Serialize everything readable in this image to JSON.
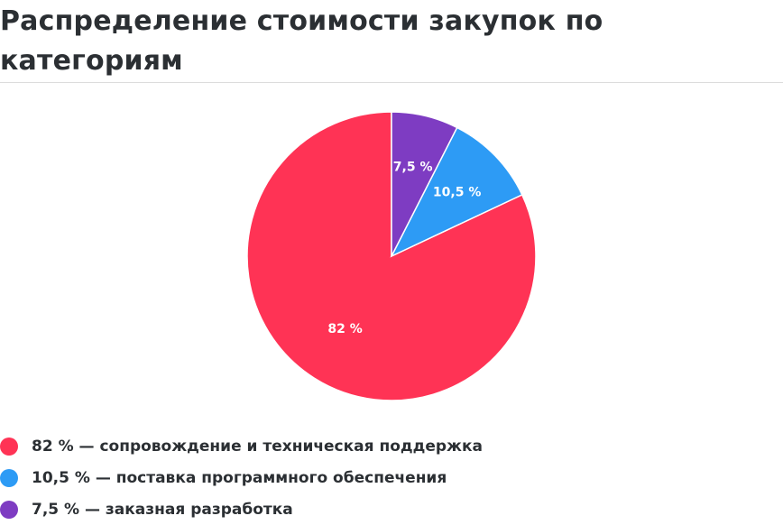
{
  "chart_data": {
    "type": "pie",
    "title": "Распределение стоимости закупок по категориям",
    "legend": "bottom-left",
    "slices": [
      {
        "label": "82 % — сопровождение и техническая поддержка",
        "value": 82,
        "value_label": "82 %",
        "color": "#ff3355"
      },
      {
        "label": "10,5 % — поставка программного обеспечения",
        "value": 10.5,
        "value_label": "10,5 %",
        "color": "#2d9bf5"
      },
      {
        "label": "7,5 % — заказная разработка",
        "value": 7.5,
        "value_label": "7,5 %",
        "color": "#7e3cc2"
      }
    ]
  }
}
